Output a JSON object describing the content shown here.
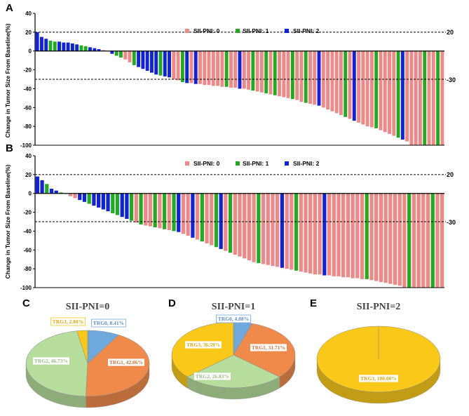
{
  "colors": {
    "g0": "#f08888",
    "g1": "#22aa22",
    "g2": "#1122dd",
    "TRG0": "#6fa8dc",
    "TRG1": "#f08a4b",
    "TRG2": "#b6dd9c",
    "TRG3": "#f9c819"
  },
  "chart_data": [
    {
      "panel": "A",
      "type": "bar",
      "ylabel": "Change in Tumor Size From Baseline(%)",
      "ylim": [
        -100,
        40
      ],
      "yticks": [
        40,
        20,
        0,
        -20,
        -40,
        -60,
        -80,
        -100
      ],
      "ref_lines": [
        20,
        -30
      ],
      "ref_labels": [
        "20",
        "-30"
      ],
      "legend": [
        "SII-PNI: 0",
        "SII-PNI: 1",
        "SII-PNI: 2"
      ],
      "values": [
        20,
        15,
        13,
        11,
        10,
        10,
        9,
        9,
        8,
        7,
        6,
        5,
        4,
        3,
        2,
        1,
        0,
        -3,
        -5,
        -7,
        -9,
        -12,
        -15,
        -17,
        -19,
        -21,
        -23,
        -25,
        -26,
        -27,
        -28,
        -30,
        -31,
        -33,
        -34,
        -34,
        -35,
        -35,
        -36,
        -36,
        -37,
        -37,
        -38,
        -38,
        -39,
        -39,
        -40,
        -40,
        -41,
        -42,
        -43,
        -44,
        -45,
        -46,
        -47,
        -48,
        -49,
        -50,
        -51,
        -52,
        -54,
        -55,
        -56,
        -57,
        -58,
        -60,
        -62,
        -64,
        -66,
        -68,
        -70,
        -72,
        -74,
        -76,
        -78,
        -80,
        -81,
        -82,
        -84,
        -86,
        -88,
        -90,
        -92,
        -94,
        -96,
        -100,
        -100,
        -100,
        -100,
        -100,
        -100,
        -100,
        -100
      ],
      "groups": [
        2,
        2,
        2,
        1,
        1,
        2,
        2,
        2,
        2,
        2,
        1,
        1,
        2,
        2,
        2,
        0,
        0,
        2,
        1,
        1,
        0,
        0,
        1,
        2,
        2,
        2,
        2,
        2,
        1,
        2,
        2,
        0,
        0,
        1,
        2,
        0,
        2,
        0,
        0,
        0,
        0,
        0,
        0,
        1,
        0,
        0,
        2,
        0,
        0,
        1,
        0,
        0,
        1,
        0,
        1,
        0,
        0,
        0,
        1,
        0,
        0,
        1,
        0,
        0,
        2,
        0,
        0,
        0,
        0,
        0,
        1,
        0,
        2,
        0,
        0,
        0,
        0,
        1,
        0,
        0,
        0,
        0,
        1,
        2,
        0,
        0,
        0,
        0,
        1,
        0,
        0,
        1,
        0
      ]
    },
    {
      "panel": "B",
      "type": "bar",
      "ylabel": "Change in Tumor Size From Baseline(%)",
      "ylim": [
        -100,
        40
      ],
      "yticks": [
        40,
        20,
        0,
        -20,
        -40,
        -60,
        -80,
        -100
      ],
      "ref_lines": [
        20,
        -30
      ],
      "ref_labels": [
        "20",
        "-30"
      ],
      "legend": [
        "SII-PNI: 0",
        "SII-PNI: 1",
        "SII-PNI: 2"
      ],
      "values": [
        18,
        14,
        10,
        5,
        3,
        1,
        0,
        -3,
        -5,
        -7,
        -9,
        -11,
        -13,
        -15,
        -17,
        -19,
        -21,
        -23,
        -25,
        -27,
        -29,
        -31,
        -33,
        -34,
        -35,
        -36,
        -37,
        -38,
        -39,
        -40,
        -41,
        -43,
        -45,
        -47,
        -49,
        -51,
        -53,
        -55,
        -57,
        -59,
        -61,
        -63,
        -65,
        -67,
        -69,
        -71,
        -73,
        -74,
        -75,
        -76,
        -77,
        -78,
        -79,
        -80,
        -81,
        -82,
        -83,
        -84,
        -85,
        -86,
        -86,
        -87,
        -87,
        -88,
        -88,
        -89,
        -89,
        -90,
        -90,
        -91,
        -91,
        -92,
        -93,
        -94,
        -95,
        -96,
        -97,
        -98,
        -100,
        -100,
        -100,
        -100,
        -100,
        -100,
        -100,
        -100,
        -100
      ],
      "groups": [
        2,
        2,
        1,
        2,
        2,
        1,
        1,
        0,
        0,
        2,
        2,
        1,
        2,
        2,
        2,
        2,
        1,
        1,
        2,
        2,
        1,
        0,
        1,
        0,
        0,
        1,
        0,
        1,
        0,
        1,
        2,
        0,
        0,
        2,
        0,
        1,
        0,
        0,
        1,
        2,
        0,
        1,
        0,
        0,
        0,
        0,
        0,
        1,
        0,
        0,
        0,
        0,
        2,
        0,
        0,
        1,
        0,
        0,
        0,
        0,
        0,
        2,
        0,
        0,
        0,
        0,
        0,
        0,
        0,
        0,
        1,
        0,
        0,
        0,
        0,
        0,
        0,
        0,
        0,
        1,
        0,
        0,
        0,
        0,
        1,
        0,
        0
      ]
    },
    {
      "panel": "C",
      "type": "pie",
      "title": "SII-PNI=0",
      "slices": [
        {
          "name": "TRG0",
          "value": 8.41,
          "label": "TRG0, 8.41%"
        },
        {
          "name": "TRG1",
          "value": 42.06,
          "label": "TRG1, 42.06%"
        },
        {
          "name": "TRG2",
          "value": 46.73,
          "label": "TRG2, 46.73%"
        },
        {
          "name": "TRG3",
          "value": 2.8,
          "label": "TRG3, 2.80%"
        }
      ]
    },
    {
      "panel": "D",
      "type": "pie",
      "title": "SII-PNI=1",
      "slices": [
        {
          "name": "TRG0",
          "value": 4.88,
          "label": "TRG0, 4.88%"
        },
        {
          "name": "TRG1",
          "value": 31.71,
          "label": "TRG1, 31.71%"
        },
        {
          "name": "TRG2",
          "value": 26.83,
          "label": "TRG2, 26.83%"
        },
        {
          "name": "TRG3",
          "value": 36.59,
          "label": "TRG3, 36.59%"
        }
      ]
    },
    {
      "panel": "E",
      "type": "pie",
      "title": "SII-PNI=2",
      "slices": [
        {
          "name": "TRG3",
          "value": 100.0,
          "label": "TRG3, 100.00%"
        }
      ]
    }
  ]
}
